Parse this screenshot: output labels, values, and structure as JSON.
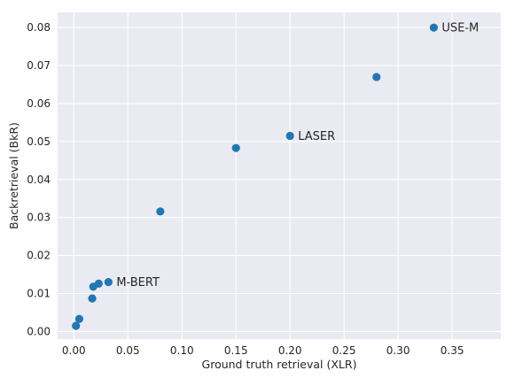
{
  "chart_data": {
    "type": "scatter",
    "title": "",
    "xlabel": "Ground truth retrieval (XLR)",
    "ylabel": "Backretrieval (BkR)",
    "xlim": [
      -0.015,
      0.395
    ],
    "ylim": [
      -0.002,
      0.084
    ],
    "x_ticks": [
      0.0,
      0.05,
      0.1,
      0.15,
      0.2,
      0.25,
      0.3,
      0.35
    ],
    "x_tick_labels": [
      "0.00",
      "0.05",
      "0.10",
      "0.15",
      "0.20",
      "0.25",
      "0.30",
      "0.35"
    ],
    "y_ticks": [
      0.0,
      0.01,
      0.02,
      0.03,
      0.04,
      0.05,
      0.06,
      0.07,
      0.08
    ],
    "y_tick_labels": [
      "0.00",
      "0.01",
      "0.02",
      "0.03",
      "0.04",
      "0.05",
      "0.06",
      "0.07",
      "0.08"
    ],
    "grid": true,
    "background": "#eaeaf2",
    "marker_color": "#1f77b4",
    "points": [
      {
        "x": 0.002,
        "y": 0.0015
      },
      {
        "x": 0.005,
        "y": 0.0033
      },
      {
        "x": 0.017,
        "y": 0.0087
      },
      {
        "x": 0.018,
        "y": 0.0118
      },
      {
        "x": 0.023,
        "y": 0.0126
      },
      {
        "x": 0.032,
        "y": 0.013
      },
      {
        "x": 0.08,
        "y": 0.0316
      },
      {
        "x": 0.15,
        "y": 0.0483
      },
      {
        "x": 0.2,
        "y": 0.0515
      },
      {
        "x": 0.28,
        "y": 0.067
      },
      {
        "x": 0.333,
        "y": 0.08
      }
    ],
    "annotations": [
      {
        "text": "M-BERT",
        "x": 0.032,
        "y": 0.013
      },
      {
        "text": "LASER",
        "x": 0.2,
        "y": 0.0515
      },
      {
        "text": "USE-M",
        "x": 0.333,
        "y": 0.08
      }
    ]
  }
}
